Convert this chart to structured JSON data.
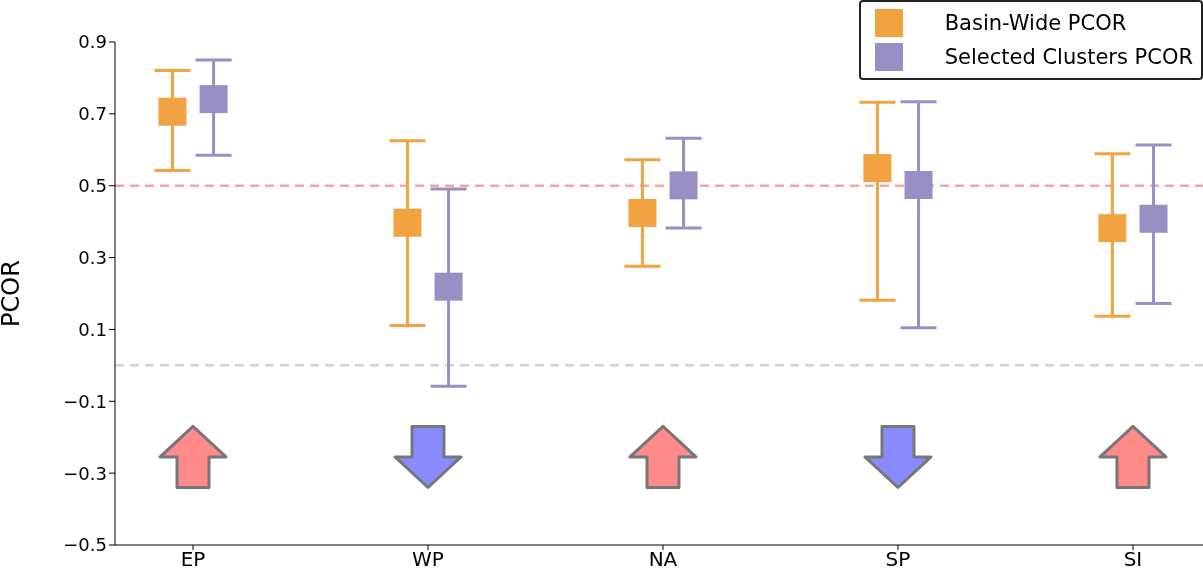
{
  "chart_data": {
    "type": "scatter",
    "ylabel": "PCOR",
    "categories": [
      "EP",
      "WP",
      "NA",
      "SP",
      "SI"
    ],
    "series": [
      {
        "name": "Basin-Wide PCOR",
        "color": "#f0a340",
        "values": [
          0.706,
          0.397,
          0.424,
          0.549,
          0.382
        ],
        "errors": [
          [
            0.542,
            0.821
          ],
          [
            0.111,
            0.625
          ],
          [
            0.276,
            0.572
          ],
          [
            0.181,
            0.732
          ],
          [
            0.137,
            0.589
          ]
        ]
      },
      {
        "name": "Selected Clusters PCOR",
        "color": "#988fc4",
        "values": [
          0.741,
          0.219,
          0.501,
          0.502,
          0.408
        ],
        "errors": [
          [
            0.585,
            0.85
          ],
          [
            -0.058,
            0.491
          ],
          [
            0.382,
            0.632
          ],
          [
            0.105,
            0.734
          ],
          [
            0.172,
            0.613
          ]
        ]
      }
    ],
    "ylim": [
      -0.5,
      0.9
    ],
    "yticks": [
      {
        "value": -0.5,
        "label": "−0.5"
      },
      {
        "value": -0.3,
        "label": "−0.3"
      },
      {
        "value": -0.1,
        "label": "−0.1"
      },
      0.1,
      0.3,
      0.5,
      0.7,
      0.9
    ],
    "ref_lines": [
      {
        "axis": "y",
        "value": 0.5,
        "color": "#f4a6a6",
        "line_style": "dashed"
      },
      {
        "axis": "y",
        "value": 0,
        "color": "#d3d3d3",
        "line_style": "dashed"
      }
    ],
    "marker": "square",
    "legend": "top right",
    "grid": false
  }
}
